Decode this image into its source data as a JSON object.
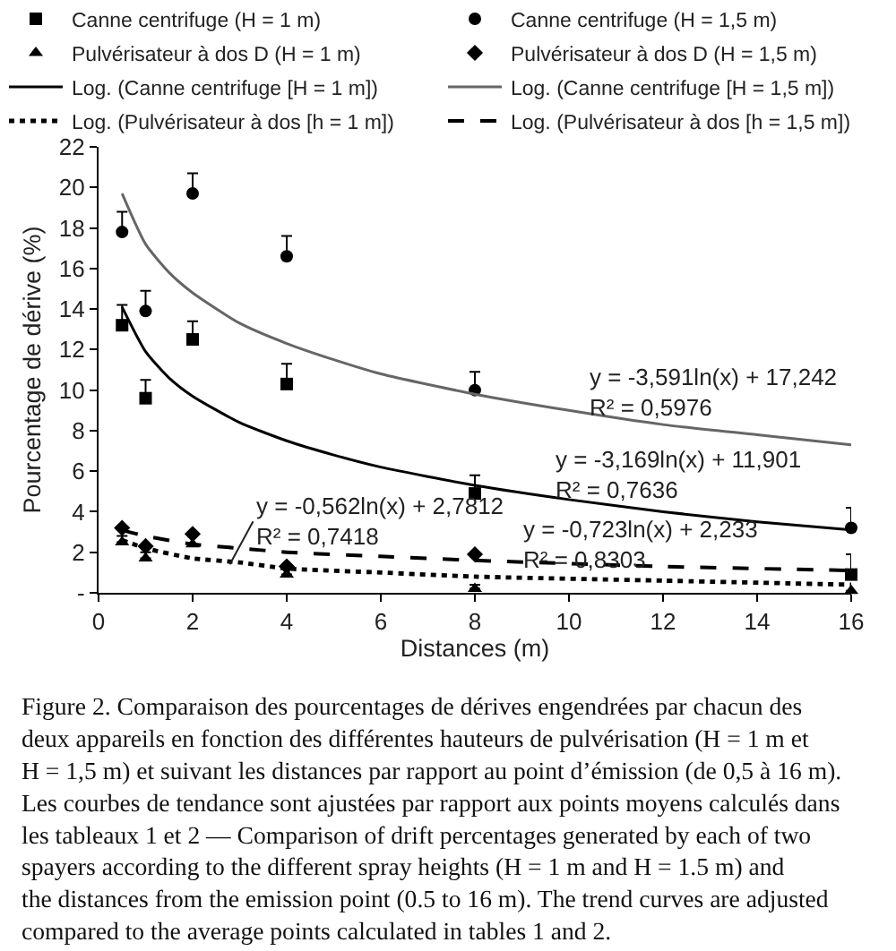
{
  "chart_data": {
    "type": "scatter",
    "xlabel": "Distances (m)",
    "ylabel": "Pourcentage de dérive (%)",
    "xlim": [
      0,
      16
    ],
    "xticks": [
      0,
      2,
      4,
      6,
      8,
      10,
      12,
      14,
      16
    ],
    "ylim": [
      0,
      22
    ],
    "yticks": [
      {
        "value": 0,
        "label": "-"
      },
      2,
      4,
      6,
      8,
      10,
      12,
      14,
      16,
      18,
      20,
      22
    ],
    "grid": false,
    "legend": "top",
    "series": [
      {
        "name": "Canne centrifuge (H = 1 m)",
        "marker": "square",
        "color": "#000000",
        "x": [
          0.5,
          1,
          2,
          4,
          8,
          16
        ],
        "values": [
          13.2,
          9.6,
          12.5,
          10.3,
          4.9,
          0.9
        ],
        "errors": [
          [
            13.2,
            14.2
          ],
          [
            9.6,
            10.5
          ],
          [
            12.5,
            13.4
          ],
          [
            10.3,
            11.3
          ],
          [
            4.9,
            5.8
          ],
          [
            0.9,
            1.9
          ]
        ]
      },
      {
        "name": "Canne centrifuge (H = 1,5 m)",
        "marker": "circle",
        "color": "#000000",
        "x": [
          0.5,
          1,
          2,
          4,
          8,
          16
        ],
        "values": [
          17.8,
          13.9,
          19.7,
          16.6,
          10.0,
          3.2
        ],
        "errors": [
          [
            17.8,
            18.8
          ],
          [
            13.9,
            14.9
          ],
          [
            19.7,
            20.7
          ],
          [
            16.6,
            17.6
          ],
          [
            10.0,
            10.9
          ],
          [
            3.2,
            4.2
          ]
        ]
      },
      {
        "name": "Pulvérisateur à dos D (H = 1 m)",
        "marker": "triangle",
        "color": "#000000",
        "x": [
          0.5,
          1,
          2,
          4,
          8,
          16
        ],
        "values": [
          2.5,
          1.7,
          2.4,
          0.9,
          0.2,
          0.1
        ],
        "errors": [
          [
            2.5,
            2.8
          ],
          [
            1.7,
            2.0
          ],
          [
            2.4,
            2.8
          ],
          [
            0.9,
            1.3
          ],
          [
            0.2,
            0.4
          ],
          null
        ]
      },
      {
        "name": "Pulvérisateur à dos D (H = 1,5 m)",
        "marker": "diamond",
        "color": "#000000",
        "x": [
          0.5,
          1,
          2,
          4,
          8
        ],
        "values": [
          3.2,
          2.3,
          2.9,
          1.3,
          1.9
        ]
      },
      {
        "name": "Log. (Canne centrifuge [H = 1 m])",
        "type": "line",
        "line_style": "solid",
        "color": "#000000",
        "x": [
          0.5,
          1,
          1.5,
          2,
          3,
          4,
          5,
          6,
          8,
          10,
          12,
          14,
          16
        ],
        "values": [
          14.1,
          11.9,
          10.6,
          9.7,
          8.4,
          7.5,
          6.8,
          6.2,
          5.3,
          4.6,
          4.0,
          3.5,
          3.1
        ]
      },
      {
        "name": "Log. (Canne centrifuge [H = 1,5 m])",
        "type": "line",
        "line_style": "solid",
        "color": "#666666",
        "x": [
          0.5,
          1,
          1.5,
          2,
          3,
          4,
          5,
          6,
          8,
          10,
          12,
          14,
          16
        ],
        "values": [
          19.7,
          17.2,
          15.8,
          14.8,
          13.3,
          12.3,
          11.5,
          10.8,
          9.8,
          9.0,
          8.3,
          7.8,
          7.3
        ]
      },
      {
        "name": "Log. (Pulvérisateur à dos [h = 1 m])",
        "type": "line",
        "line_style": "dotted",
        "color": "#000000",
        "x": [
          0.5,
          1,
          2,
          3,
          4,
          6,
          8,
          12,
          16
        ],
        "values": [
          2.6,
          2.2,
          1.7,
          1.5,
          1.2,
          1.0,
          0.8,
          0.6,
          0.4
        ]
      },
      {
        "name": "Log. (Pulvérisateur à dos [h = 1,5 m])",
        "type": "line",
        "line_style": "dashed",
        "color": "#000000",
        "x": [
          0.5,
          1,
          2,
          3,
          4,
          6,
          8,
          12,
          16
        ],
        "values": [
          3.1,
          2.8,
          2.4,
          2.2,
          2.0,
          1.8,
          1.6,
          1.3,
          1.1
        ]
      }
    ],
    "annotations": [
      "y = -3,591ln(x) + 17,242\nR² = 0,5976",
      "y = -3,169ln(x) + 11,901\nR² = 0,7636",
      {
        "text": "y = -0,562ln(x) + 2,7812\nR² = 0,7418",
        "x": 2.79,
        "y": 1.4
      },
      "y = -0,723ln(x) + 2,233\nR² = 0,8303",
      "Figure 2. Comparaison des pourcentages de dérives engendrées par chacun des\ndeux appareils en fonction des différentes hauteurs de pulvérisation (H = 1 m et\nH = 1,5 m) et suivant les distances par rapport au point d’émission (de 0,5 à 16 m).\nLes courbes de tendance sont ajustées par rapport aux points moyens calculés dans\nles tableaux 1 et 2 — Comparison of drift percentages generated by each of two\nspayers according to the different spray heights (H = 1 m and H = 1.5 m) and\nthe distances from the emission point (0.5 to 16 m). The trend curves are adjusted\ncompared to the average points calculated in tables 1 and 2."
    ]
  }
}
